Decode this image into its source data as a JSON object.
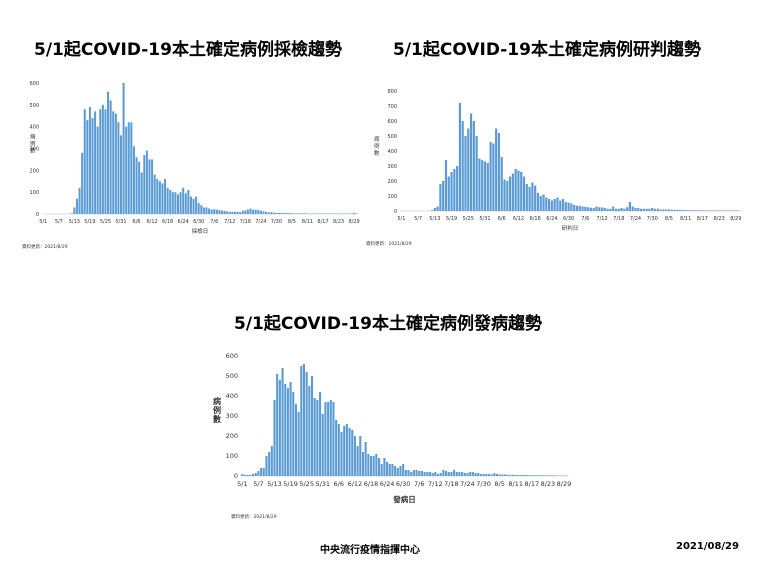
{
  "footer": {
    "center": "中央流行疫情指揮中心",
    "date": "2021/08/29"
  },
  "chart_data": [
    {
      "type": "bar",
      "title": "5/1起COVID-19本土確定病例採檢趨勢",
      "xlabel": "採檢日",
      "ylabel": "病例數",
      "ylabel_chars": [
        "病",
        "例",
        "數"
      ],
      "ylim": [
        0,
        600
      ],
      "yticks": [
        0,
        100,
        200,
        300,
        400,
        500,
        600
      ],
      "xticks": [
        "5/1",
        "5/7",
        "5/13",
        "5/19",
        "5/25",
        "5/31",
        "6/6",
        "6/12",
        "6/18",
        "6/24",
        "6/30",
        "7/6",
        "7/12",
        "7/18",
        "7/24",
        "7/30",
        "8/5",
        "8/11",
        "8/17",
        "8/23",
        "8/29"
      ],
      "note": "資料更新：2021/8/29",
      "color": "#5b9bd5",
      "values": [
        0,
        0,
        0,
        0,
        0,
        0,
        0,
        0,
        0,
        0,
        0,
        3,
        30,
        70,
        120,
        280,
        480,
        430,
        490,
        440,
        470,
        400,
        480,
        500,
        480,
        560,
        520,
        470,
        460,
        420,
        360,
        620,
        400,
        420,
        420,
        310,
        260,
        240,
        190,
        270,
        290,
        250,
        250,
        180,
        160,
        150,
        140,
        160,
        120,
        110,
        100,
        100,
        90,
        100,
        120,
        95,
        110,
        80,
        70,
        80,
        50,
        40,
        30,
        30,
        25,
        20,
        22,
        20,
        18,
        16,
        14,
        12,
        10,
        10,
        10,
        10,
        8,
        15,
        16,
        20,
        25,
        20,
        20,
        18,
        15,
        12,
        10,
        8,
        8,
        6,
        5,
        5,
        5,
        4,
        4,
        4,
        3,
        3,
        3,
        3,
        3,
        3,
        2,
        2,
        2,
        2,
        2,
        2,
        2,
        2,
        2,
        2,
        2,
        2,
        2,
        2,
        2,
        2,
        2,
        2,
        5,
        2
      ]
    },
    {
      "type": "bar",
      "title": "5/1起COVID-19本土確定病例研判趨勢",
      "xlabel": "研判日",
      "ylabel": "病例數",
      "ylabel_chars": [
        "病",
        "例",
        "數"
      ],
      "ylim": [
        0,
        800
      ],
      "yticks": [
        0,
        100,
        200,
        300,
        400,
        500,
        600,
        700,
        800
      ],
      "xticks": [
        "5/1",
        "5/7",
        "5/13",
        "5/19",
        "5/25",
        "5/31",
        "6/6",
        "6/12",
        "6/18",
        "6/24",
        "6/30",
        "7/6",
        "7/12",
        "7/18",
        "7/24",
        "7/30",
        "8/5",
        "8/11",
        "8/17",
        "8/23",
        "8/29"
      ],
      "note": "資料更新：2021/8/29",
      "color": "#5b9bd5",
      "values": [
        0,
        0,
        0,
        0,
        0,
        0,
        0,
        0,
        0,
        0,
        0,
        5,
        20,
        30,
        180,
        200,
        340,
        230,
        260,
        280,
        300,
        720,
        600,
        500,
        550,
        650,
        600,
        500,
        350,
        340,
        330,
        320,
        460,
        450,
        550,
        520,
        360,
        210,
        200,
        230,
        250,
        280,
        270,
        260,
        230,
        180,
        160,
        190,
        170,
        120,
        100,
        110,
        90,
        80,
        70,
        80,
        90,
        70,
        80,
        60,
        55,
        50,
        40,
        35,
        35,
        30,
        28,
        25,
        22,
        20,
        30,
        25,
        24,
        20,
        15,
        15,
        30,
        15,
        15,
        20,
        15,
        25,
        60,
        30,
        20,
        20,
        15,
        15,
        15,
        15,
        20,
        15,
        15,
        10,
        10,
        10,
        10,
        8,
        8,
        8,
        8,
        6,
        6,
        6,
        5,
        5,
        5,
        5,
        5,
        4,
        4,
        4,
        4,
        4,
        4,
        4,
        4,
        4,
        4,
        4,
        4,
        3
      ]
    },
    {
      "type": "bar",
      "title": "5/1起COVID-19本土確定病例發病趨勢",
      "xlabel": "發病日",
      "ylabel": "病例數",
      "ylabel_chars": [
        "病",
        "例",
        "數"
      ],
      "ylim": [
        0,
        600
      ],
      "yticks": [
        0,
        100,
        200,
        300,
        400,
        500,
        600
      ],
      "xticks": [
        "5/1",
        "5/7",
        "5/13",
        "5/19",
        "5/25",
        "5/31",
        "6/6",
        "6/12",
        "6/18",
        "6/24",
        "6/30",
        "7/6",
        "7/12",
        "7/18",
        "7/24",
        "7/30",
        "8/5",
        "8/11",
        "8/17",
        "8/23",
        "8/29"
      ],
      "note": "資料更新：2021/8/29",
      "color": "#5b9bd5",
      "values": [
        10,
        5,
        5,
        5,
        10,
        15,
        25,
        40,
        40,
        100,
        120,
        150,
        380,
        510,
        480,
        540,
        460,
        440,
        470,
        420,
        360,
        320,
        550,
        560,
        520,
        450,
        500,
        390,
        380,
        420,
        310,
        370,
        370,
        380,
        370,
        280,
        260,
        220,
        250,
        260,
        240,
        230,
        200,
        150,
        200,
        120,
        170,
        110,
        100,
        100,
        110,
        90,
        60,
        90,
        70,
        60,
        60,
        50,
        40,
        50,
        60,
        30,
        30,
        20,
        30,
        30,
        25,
        25,
        20,
        20,
        20,
        15,
        20,
        10,
        15,
        30,
        25,
        20,
        20,
        30,
        20,
        20,
        20,
        15,
        15,
        20,
        20,
        15,
        15,
        10,
        10,
        10,
        10,
        8,
        15,
        10,
        8,
        8,
        8,
        6,
        6,
        6,
        5,
        5,
        5,
        5,
        5,
        4,
        4,
        4,
        4,
        4,
        4,
        3,
        3,
        3,
        3,
        3,
        2,
        2,
        2,
        2
      ]
    }
  ]
}
